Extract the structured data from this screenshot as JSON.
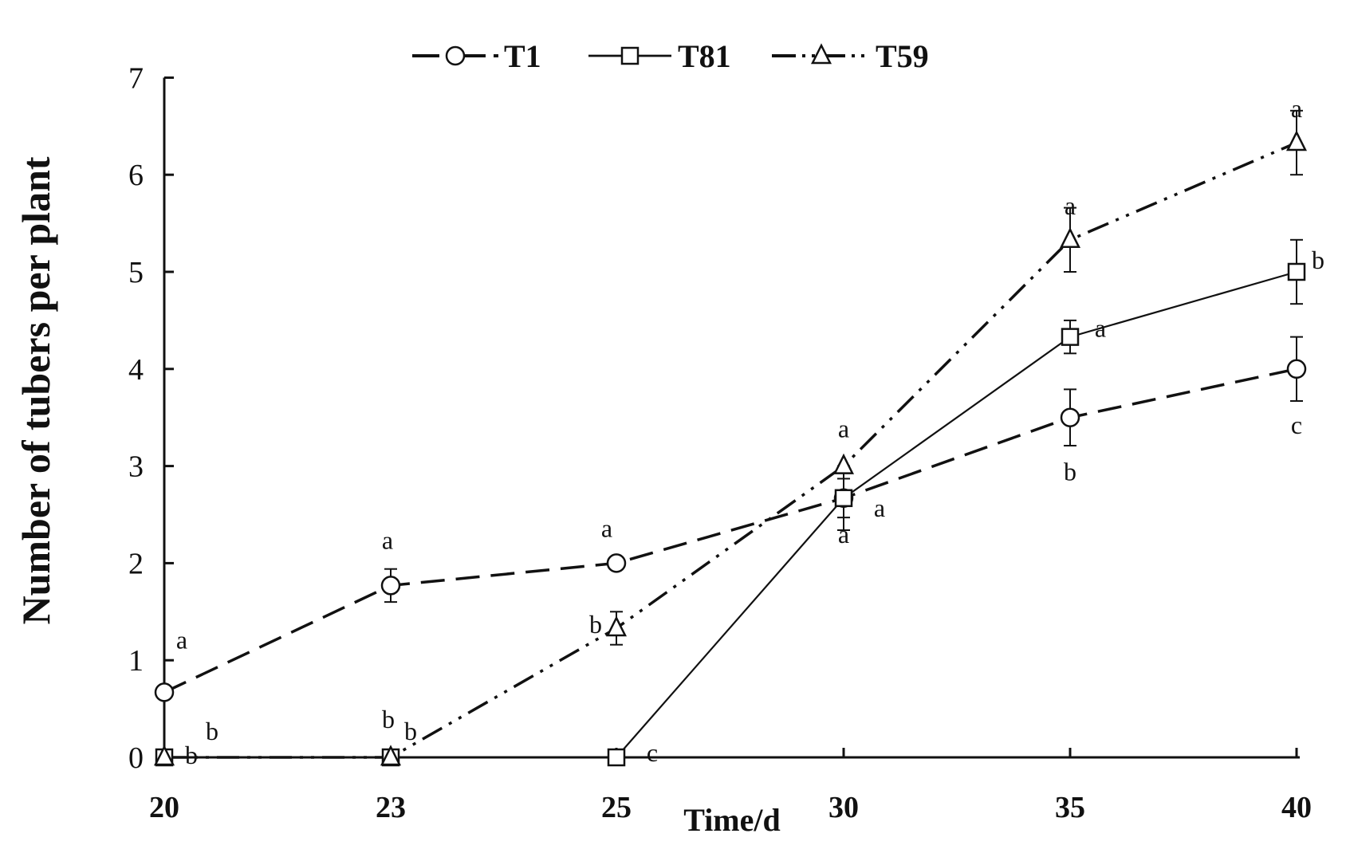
{
  "chart_data": {
    "type": "line",
    "xlabel": "Time/d",
    "ylabel": "Number of tubers per plant",
    "categories": [
      "20",
      "23",
      "25",
      "30",
      "35",
      "40"
    ],
    "ylim": [
      0,
      7
    ],
    "yticks": [
      "0",
      "1",
      "2",
      "3",
      "4",
      "5",
      "6",
      "7"
    ],
    "legend_position": "top-center",
    "grid": false,
    "series": [
      {
        "name": "T1",
        "marker": "circle",
        "line_style": "dashed",
        "values": [
          0.67,
          1.77,
          2.0,
          2.67,
          3.5,
          4.0
        ],
        "errors": [
          0,
          0.17,
          0,
          0.2,
          0.29,
          0.33
        ],
        "significance": [
          "a",
          "a",
          "a",
          "a",
          "b",
          "c"
        ]
      },
      {
        "name": "T81",
        "marker": "square",
        "line_style": "solid",
        "values": [
          0,
          0,
          0,
          2.67,
          4.33,
          5.0
        ],
        "errors": [
          0,
          0,
          0,
          0.33,
          0.17,
          0.33
        ],
        "significance": [
          "b",
          "b",
          "c",
          "a",
          "a",
          "b"
        ]
      },
      {
        "name": "T59",
        "marker": "triangle",
        "line_style": "dash-dot-dot",
        "values": [
          0,
          0,
          1.33,
          3.0,
          5.33,
          6.33
        ],
        "errors": [
          0,
          0,
          0.17,
          0,
          0.33,
          0.33
        ],
        "significance": [
          "b",
          "b",
          "b",
          "a",
          "a",
          "a"
        ]
      }
    ]
  }
}
